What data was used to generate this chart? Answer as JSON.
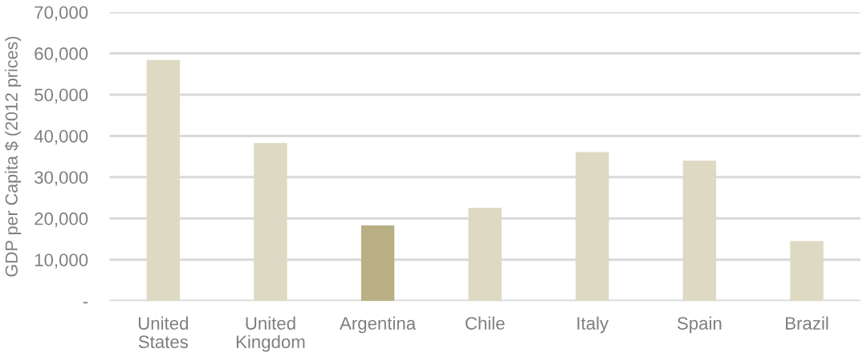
{
  "chart_data": {
    "type": "bar",
    "ylabel": "GDP per Capita $ (2012 prices)",
    "categories": [
      "United States",
      "United Kingdom",
      "Argentina",
      "Chile",
      "Italy",
      "Spain",
      "Brazil"
    ],
    "values": [
      58400,
      38300,
      18300,
      22600,
      36100,
      34000,
      14500
    ],
    "colors": [
      "#ddd9c3",
      "#ddd9c3",
      "#b8b084",
      "#ddd9c3",
      "#ddd9c3",
      "#ddd9c3",
      "#ddd9c3"
    ],
    "ylim": [
      0,
      70000
    ],
    "yticks": [
      {
        "value": 0,
        "label": "-"
      },
      {
        "value": 10000,
        "label": "10,000"
      },
      {
        "value": 20000,
        "label": "20,000"
      },
      {
        "value": 30000,
        "label": "30,000"
      },
      {
        "value": 40000,
        "label": "40,000"
      },
      {
        "value": 50000,
        "label": "50,000"
      },
      {
        "value": 60000,
        "label": "60,000"
      },
      {
        "value": 70000,
        "label": "70,000"
      }
    ],
    "grid": "y"
  }
}
